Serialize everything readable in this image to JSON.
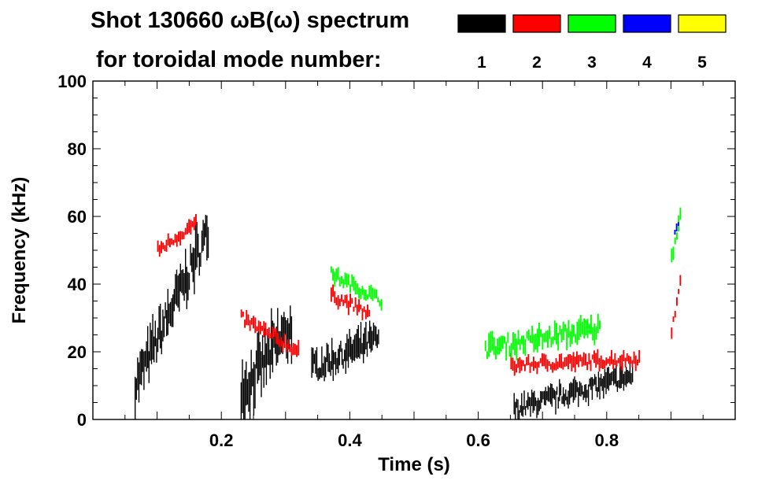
{
  "chart_data": {
    "type": "heatmap",
    "title_line1": "Shot 130660 ωB(ω) spectrum",
    "title_line2": "for toroidal mode number:",
    "xlabel": "Time (s)",
    "ylabel": "Frequency (kHz)",
    "xlim": [
      0.0,
      1.0
    ],
    "ylim": [
      0,
      100
    ],
    "x_ticks": [
      {
        "v": 0.2,
        "label": "0.2"
      },
      {
        "v": 0.4,
        "label": "0.4"
      },
      {
        "v": 0.6,
        "label": "0.6"
      },
      {
        "v": 0.8,
        "label": "0.8"
      }
    ],
    "y_ticks": [
      {
        "v": 0,
        "label": "0"
      },
      {
        "v": 20,
        "label": "20"
      },
      {
        "v": 40,
        "label": "40"
      },
      {
        "v": 60,
        "label": "60"
      },
      {
        "v": 80,
        "label": "80"
      },
      {
        "v": 100,
        "label": "100"
      }
    ],
    "legend": [
      {
        "n": "1",
        "color": "#000000"
      },
      {
        "n": "2",
        "color": "#ff0000"
      },
      {
        "n": "3",
        "color": "#00ff00"
      },
      {
        "n": "4",
        "color": "#0000ff"
      },
      {
        "n": "5",
        "color": "#ffff00"
      }
    ],
    "regions": [
      {
        "name": "n1-burst-early",
        "n": 1,
        "t0": 0.065,
        "t1": 0.18,
        "f0": 10,
        "f1": 56,
        "spread": 6
      },
      {
        "name": "n1-band-mid",
        "n": 1,
        "t0": 0.23,
        "t1": 0.31,
        "f0": 8,
        "f1": 28,
        "spread": 7
      },
      {
        "name": "n1-band-040",
        "n": 1,
        "t0": 0.34,
        "t1": 0.445,
        "f0": 15,
        "f1": 24,
        "spread": 4
      },
      {
        "name": "n1-band-late",
        "n": 1,
        "t0": 0.655,
        "t1": 0.84,
        "f0": 3,
        "f1": 13,
        "spread": 3
      },
      {
        "name": "n2-chirp-early",
        "n": 2,
        "t0": 0.1,
        "t1": 0.16,
        "f0": 50,
        "f1": 58,
        "spread": 2
      },
      {
        "name": "n2-chirp-mid",
        "n": 2,
        "t0": 0.23,
        "t1": 0.32,
        "f0": 30,
        "f1": 20,
        "spread": 2
      },
      {
        "name": "n2-chirp-040",
        "n": 2,
        "t0": 0.37,
        "t1": 0.43,
        "f0": 37,
        "f1": 31,
        "spread": 2
      },
      {
        "name": "n2-band-late",
        "n": 2,
        "t0": 0.65,
        "t1": 0.85,
        "f0": 16,
        "f1": 18,
        "spread": 2
      },
      {
        "name": "n2-spike-end",
        "n": 2,
        "t0": 0.9,
        "t1": 0.915,
        "f0": 25,
        "f1": 44,
        "spread": 2
      },
      {
        "name": "n3-chirp-040",
        "n": 3,
        "t0": 0.37,
        "t1": 0.45,
        "f0": 43,
        "f1": 35,
        "spread": 2
      },
      {
        "name": "n3-band-late",
        "n": 3,
        "t0": 0.61,
        "t1": 0.79,
        "f0": 21,
        "f1": 27,
        "spread": 3
      },
      {
        "name": "n3-spike-end",
        "n": 3,
        "t0": 0.9,
        "t1": 0.915,
        "f0": 48,
        "f1": 62,
        "spread": 2
      },
      {
        "name": "n4-spot-end",
        "n": 4,
        "t0": 0.905,
        "t1": 0.912,
        "f0": 56,
        "f1": 59,
        "spread": 1
      }
    ]
  }
}
